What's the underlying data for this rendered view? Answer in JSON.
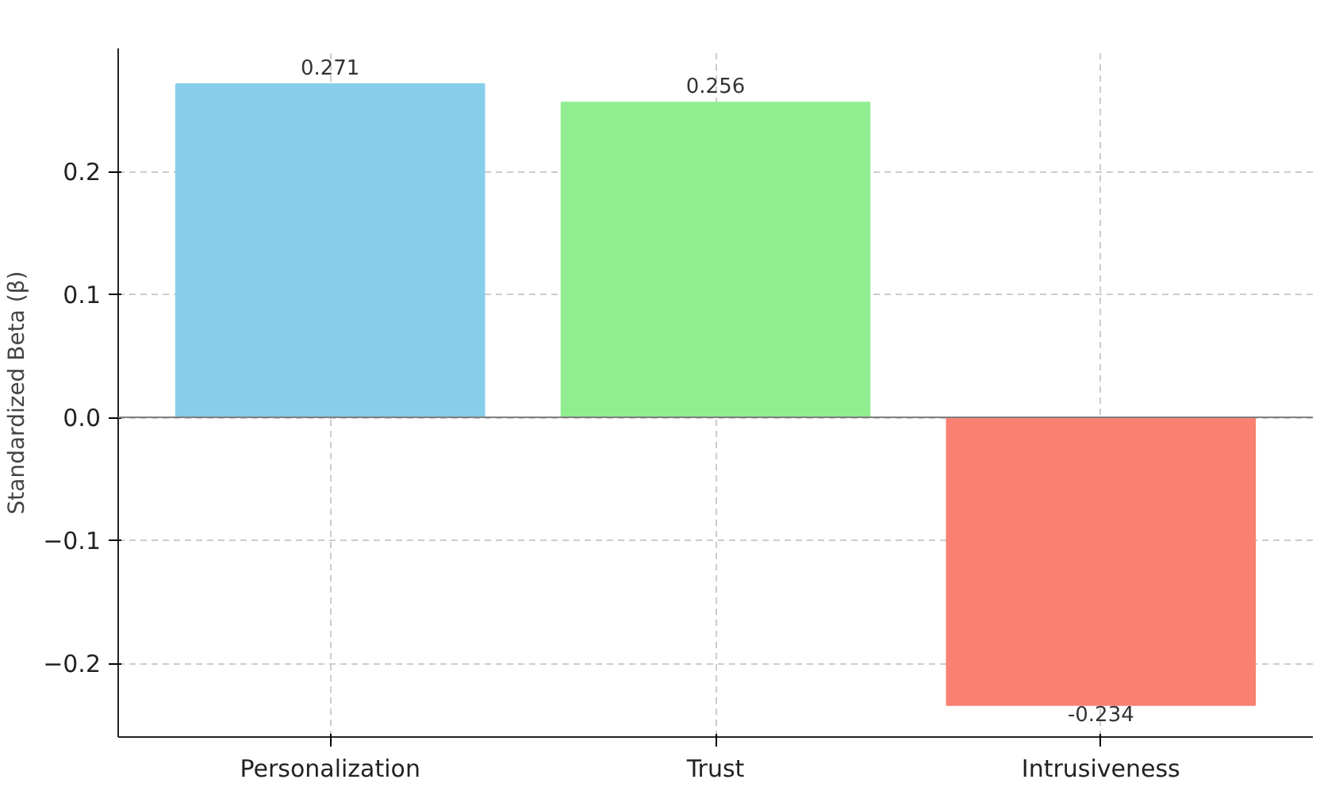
{
  "chart_data": {
    "type": "bar",
    "ylabel": "Standardized Beta (β)",
    "categories": [
      "Personalization",
      "Trust",
      "Intrusiveness"
    ],
    "values": [
      0.271,
      0.256,
      -0.234
    ],
    "colors": [
      "#87ceeb",
      "#90ee90",
      "#fa8072"
    ],
    "data_labels": true,
    "ylim": [
      -0.26,
      0.3
    ],
    "yticks": [
      {
        "value": -0.2,
        "label": "−0.2"
      },
      {
        "value": -0.1,
        "label": "−0.1"
      },
      {
        "value": 0,
        "label": "0.0"
      },
      {
        "value": 0.1,
        "label": "0.1"
      },
      {
        "value": 0.2,
        "label": "0.2"
      }
    ],
    "grid": true,
    "ref_lines": [
      {
        "axis": "y",
        "value": 0,
        "color": "#808080"
      }
    ]
  }
}
